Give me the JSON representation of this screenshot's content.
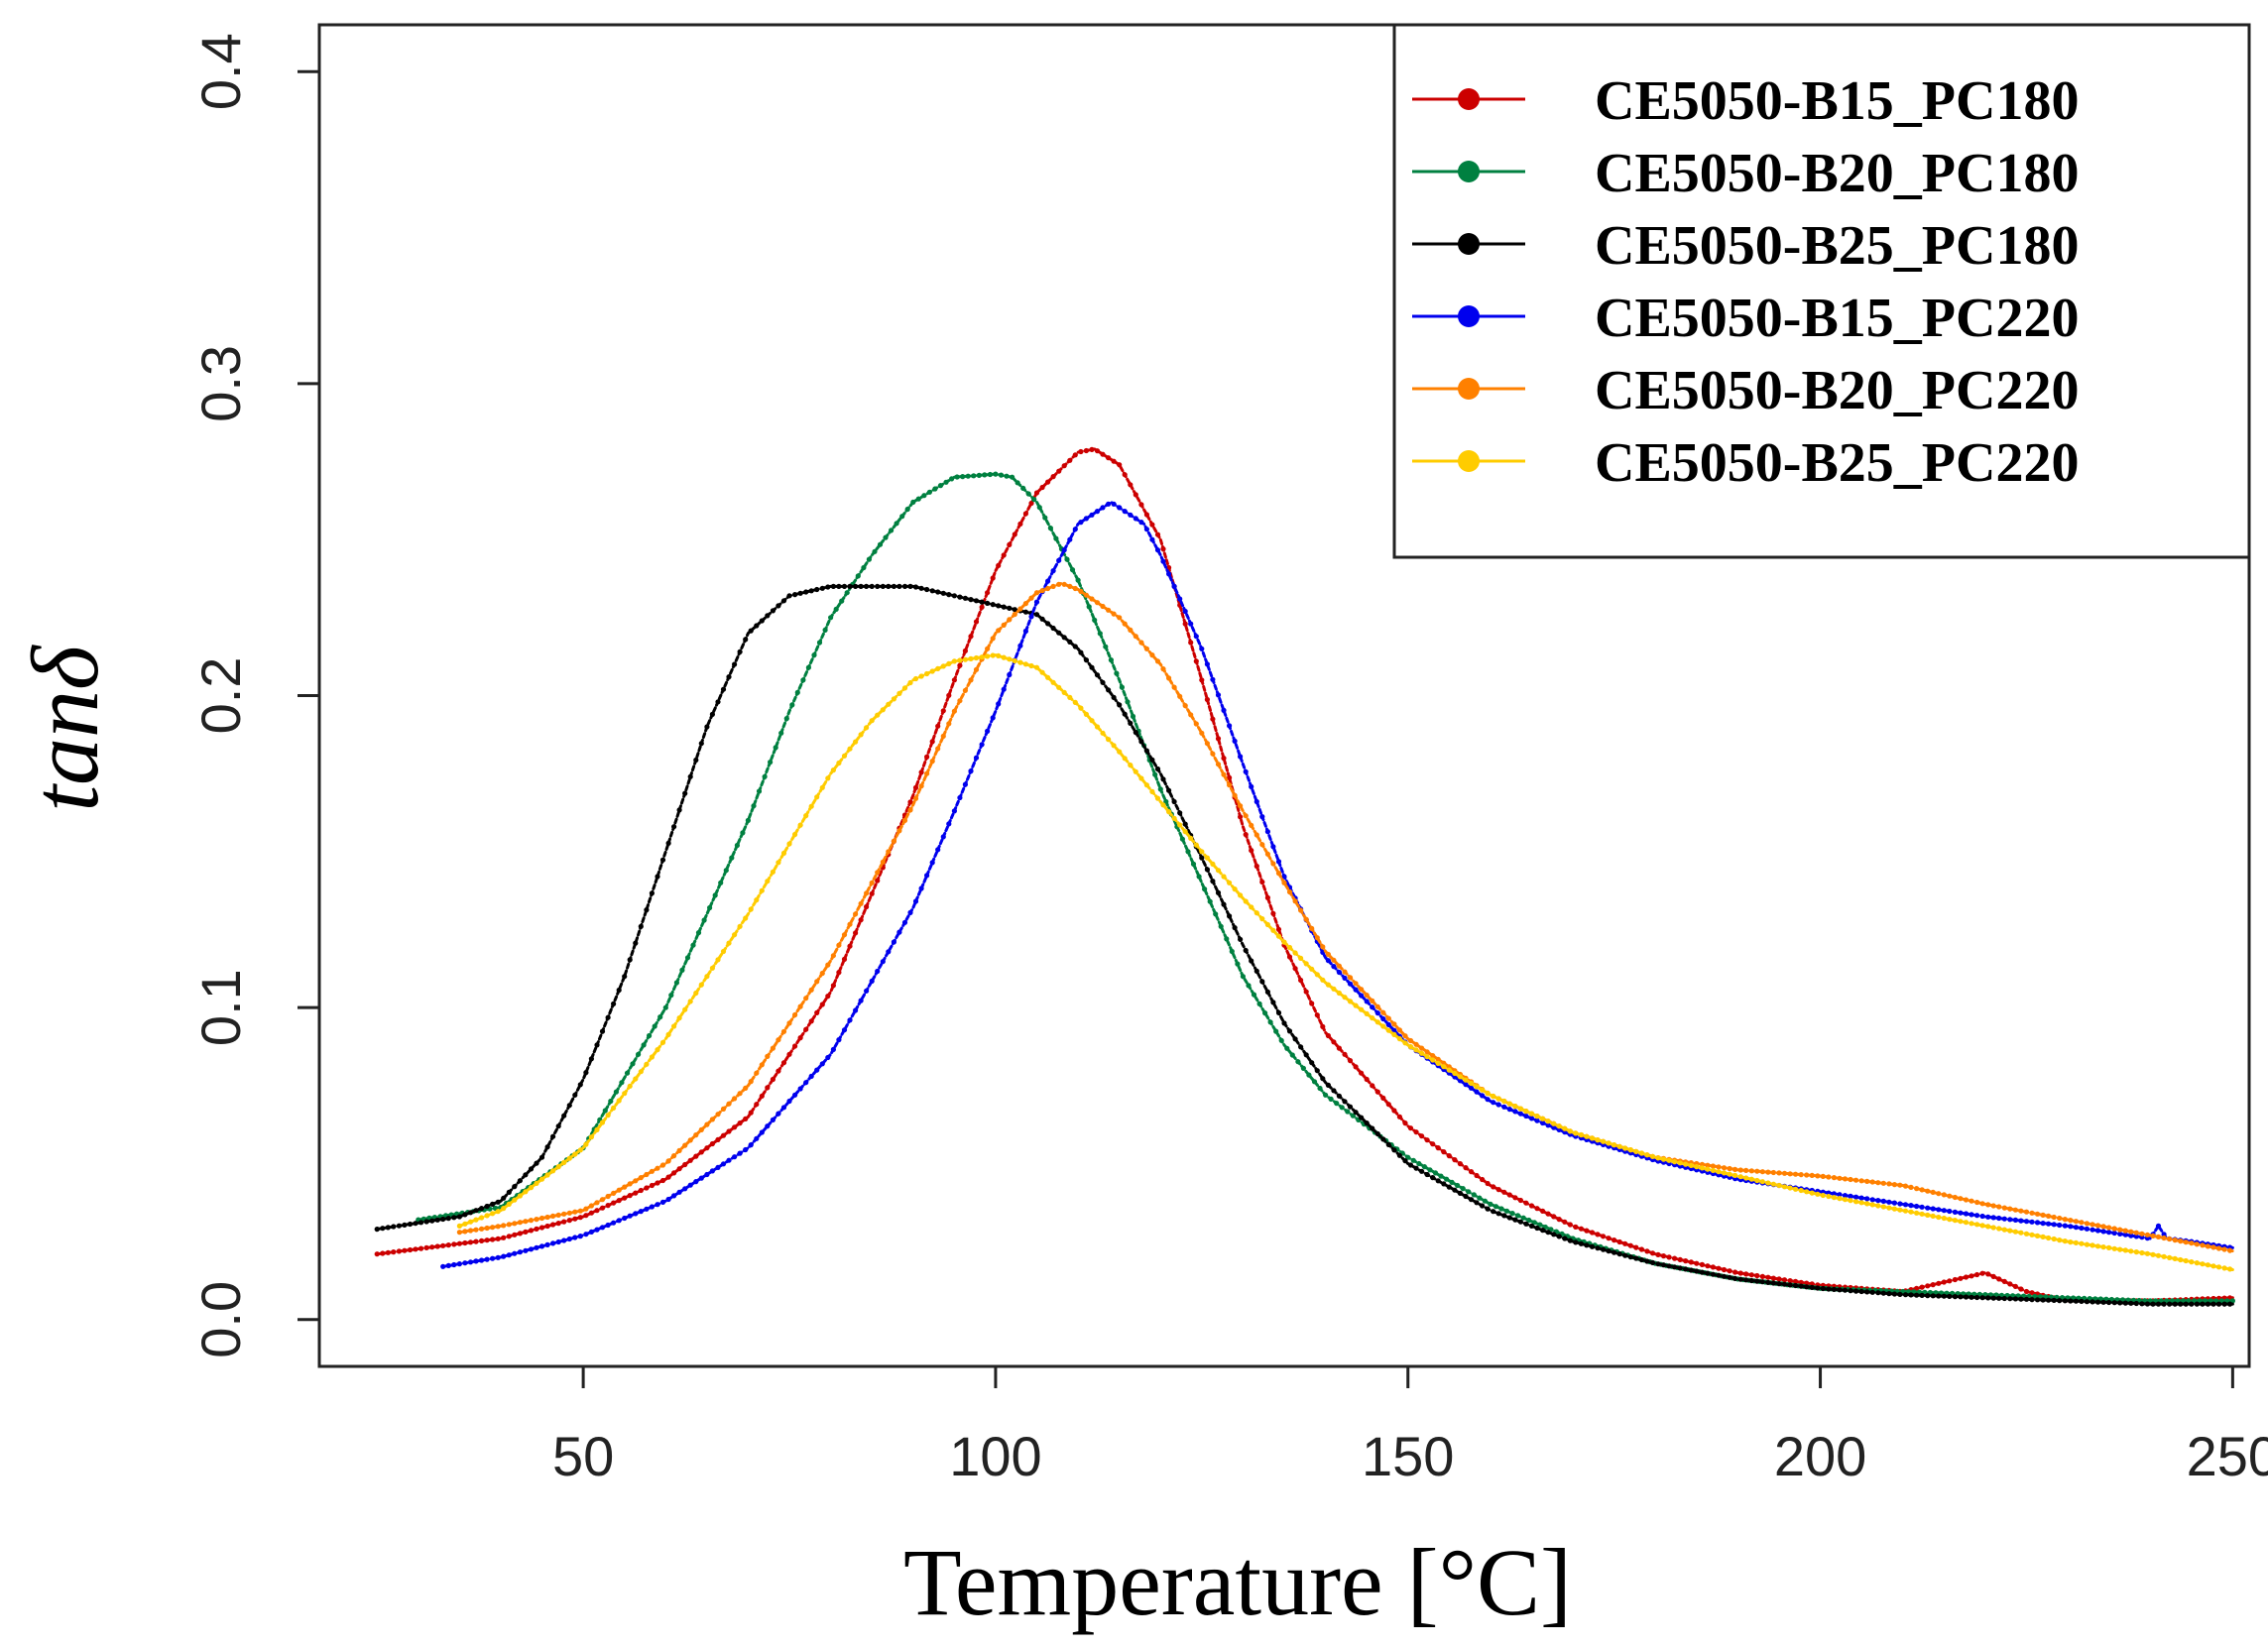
{
  "chart_data": {
    "type": "line",
    "title": "",
    "xlabel": "Temperature [°C]",
    "ylabel": "tanδ",
    "xlim": [
      18,
      252
    ],
    "ylim": [
      -0.015,
      0.415
    ],
    "x_ticks": [
      50,
      100,
      150,
      200,
      250
    ],
    "y_ticks": [
      0.0,
      0.1,
      0.2,
      0.3,
      0.4
    ],
    "x_tick_labels": [
      "50",
      "100",
      "150",
      "200",
      "250"
    ],
    "y_tick_labels": [
      "0.0",
      "0.1",
      "0.2",
      "0.3",
      "0.4"
    ],
    "legend_position": "top-right",
    "grid": false,
    "series": [
      {
        "name": "CE5050-B15_PC180",
        "color": "#cc0000",
        "x": [
          25,
          40,
          50,
          60,
          70,
          80,
          90,
          95,
          100,
          105,
          110,
          112,
          115,
          120,
          125,
          130,
          135,
          140,
          150,
          160,
          170,
          180,
          190,
          200,
          210,
          215,
          220,
          225,
          230,
          240,
          250
        ],
        "y": [
          0.021,
          0.026,
          0.033,
          0.045,
          0.065,
          0.105,
          0.168,
          0.205,
          0.24,
          0.265,
          0.278,
          0.279,
          0.274,
          0.25,
          0.205,
          0.158,
          0.12,
          0.092,
          0.062,
          0.043,
          0.03,
          0.021,
          0.015,
          0.011,
          0.009,
          0.012,
          0.015,
          0.009,
          0.006,
          0.006,
          0.007
        ]
      },
      {
        "name": "CE5050-B20_PC180",
        "color": "#008040",
        "x": [
          30,
          40,
          50,
          60,
          70,
          75,
          80,
          85,
          90,
          95,
          100,
          102,
          105,
          110,
          115,
          120,
          125,
          130,
          135,
          140,
          150,
          160,
          170,
          180,
          190,
          200,
          210,
          220,
          230,
          240,
          250
        ],
        "y": [
          0.032,
          0.036,
          0.055,
          0.1,
          0.16,
          0.195,
          0.225,
          0.245,
          0.262,
          0.27,
          0.271,
          0.27,
          0.262,
          0.237,
          0.205,
          0.17,
          0.14,
          0.11,
          0.088,
          0.072,
          0.052,
          0.037,
          0.026,
          0.018,
          0.013,
          0.01,
          0.009,
          0.008,
          0.007,
          0.006,
          0.006
        ]
      },
      {
        "name": "CE5050-B25_PC180",
        "color": "#000000",
        "x": [
          25,
          35,
          40,
          45,
          50,
          55,
          60,
          65,
          70,
          75,
          80,
          85,
          90,
          95,
          100,
          105,
          110,
          115,
          120,
          125,
          130,
          135,
          140,
          150,
          160,
          170,
          180,
          190,
          200,
          210,
          220,
          230,
          240,
          250
        ],
        "y": [
          0.029,
          0.033,
          0.038,
          0.052,
          0.077,
          0.11,
          0.15,
          0.19,
          0.22,
          0.232,
          0.235,
          0.235,
          0.235,
          0.232,
          0.229,
          0.226,
          0.215,
          0.197,
          0.175,
          0.148,
          0.12,
          0.095,
          0.076,
          0.05,
          0.035,
          0.025,
          0.018,
          0.013,
          0.01,
          0.008,
          0.007,
          0.006,
          0.005,
          0.005
        ]
      },
      {
        "name": "CE5050-B15_PC220",
        "color": "#0000ee",
        "x": [
          33,
          40,
          50,
          60,
          70,
          80,
          90,
          95,
          100,
          105,
          110,
          114,
          118,
          120,
          125,
          130,
          135,
          140,
          150,
          160,
          170,
          180,
          190,
          200,
          210,
          220,
          230,
          240,
          241,
          242,
          245,
          250
        ],
        "y": [
          0.017,
          0.02,
          0.027,
          0.038,
          0.055,
          0.085,
          0.132,
          0.163,
          0.195,
          0.23,
          0.255,
          0.262,
          0.255,
          0.245,
          0.215,
          0.178,
          0.142,
          0.116,
          0.088,
          0.07,
          0.059,
          0.051,
          0.045,
          0.041,
          0.037,
          0.033,
          0.03,
          0.026,
          0.03,
          0.026,
          0.025,
          0.023
        ]
      },
      {
        "name": "CE5050-B20_PC220",
        "color": "#ff8000",
        "x": [
          35,
          40,
          50,
          60,
          70,
          80,
          90,
          95,
          100,
          105,
          108,
          110,
          115,
          120,
          125,
          130,
          135,
          140,
          150,
          160,
          170,
          180,
          190,
          200,
          210,
          220,
          230,
          240,
          250
        ],
        "y": [
          0.028,
          0.03,
          0.035,
          0.05,
          0.075,
          0.115,
          0.165,
          0.195,
          0.22,
          0.233,
          0.236,
          0.234,
          0.225,
          0.21,
          0.188,
          0.163,
          0.14,
          0.118,
          0.09,
          0.072,
          0.06,
          0.052,
          0.048,
          0.046,
          0.043,
          0.037,
          0.032,
          0.027,
          0.022
        ]
      },
      {
        "name": "CE5050-B25_PC220",
        "color": "#ffcc00",
        "x": [
          35,
          40,
          50,
          60,
          70,
          80,
          85,
          90,
          95,
          100,
          105,
          110,
          115,
          120,
          125,
          130,
          135,
          140,
          150,
          160,
          170,
          180,
          190,
          200,
          210,
          220,
          230,
          240,
          250
        ],
        "y": [
          0.03,
          0.035,
          0.055,
          0.09,
          0.13,
          0.175,
          0.192,
          0.205,
          0.211,
          0.213,
          0.209,
          0.197,
          0.182,
          0.166,
          0.15,
          0.135,
          0.121,
          0.108,
          0.088,
          0.072,
          0.06,
          0.052,
          0.046,
          0.04,
          0.035,
          0.03,
          0.025,
          0.021,
          0.016
        ]
      }
    ]
  }
}
